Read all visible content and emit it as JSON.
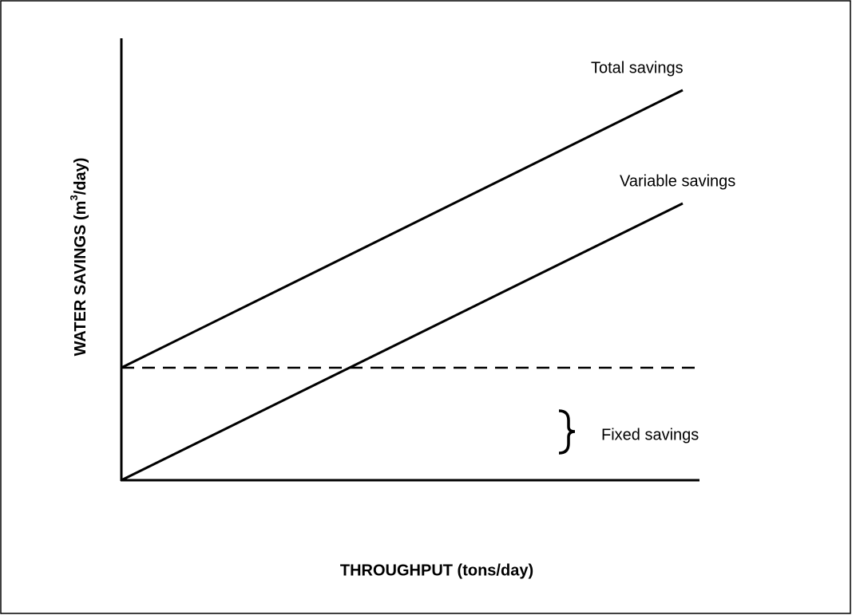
{
  "y_axis": {
    "label_parts": [
      "WATER SAVINGS (m",
      "3",
      "/day)"
    ]
  },
  "x_axis": {
    "label": "THROUGHPUT (tons/day)"
  },
  "annotations": {
    "total": "Total savings",
    "variable": "Variable savings",
    "fixed": "Fixed savings"
  }
}
